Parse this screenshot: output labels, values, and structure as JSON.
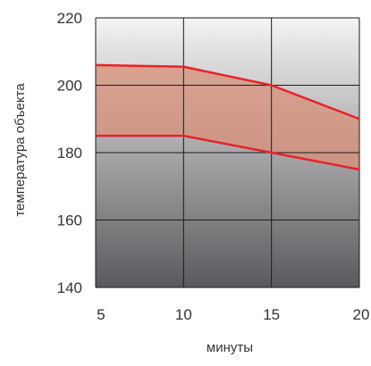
{
  "chart_data": {
    "type": "area",
    "title": "",
    "xlabel": "минуты",
    "ylabel": "температура объекта",
    "x": [
      5,
      10,
      15,
      20
    ],
    "xlim": [
      5,
      20
    ],
    "ylim": [
      140,
      220
    ],
    "xticks": [
      "5",
      "10",
      "15",
      "20"
    ],
    "yticks": [
      "140",
      "160",
      "180",
      "200",
      "220"
    ],
    "grid": true,
    "series": [
      {
        "values": [
          206,
          205.5,
          200,
          190
        ]
      },
      {
        "values": [
          185,
          185,
          180,
          175
        ]
      }
    ],
    "colors": {
      "line": "#e8222a",
      "band_fill": "#d98f78",
      "background_top": "#f4f4f4",
      "background_bottom": "#5a5a5e",
      "grid": "#1a1a1a"
    }
  }
}
